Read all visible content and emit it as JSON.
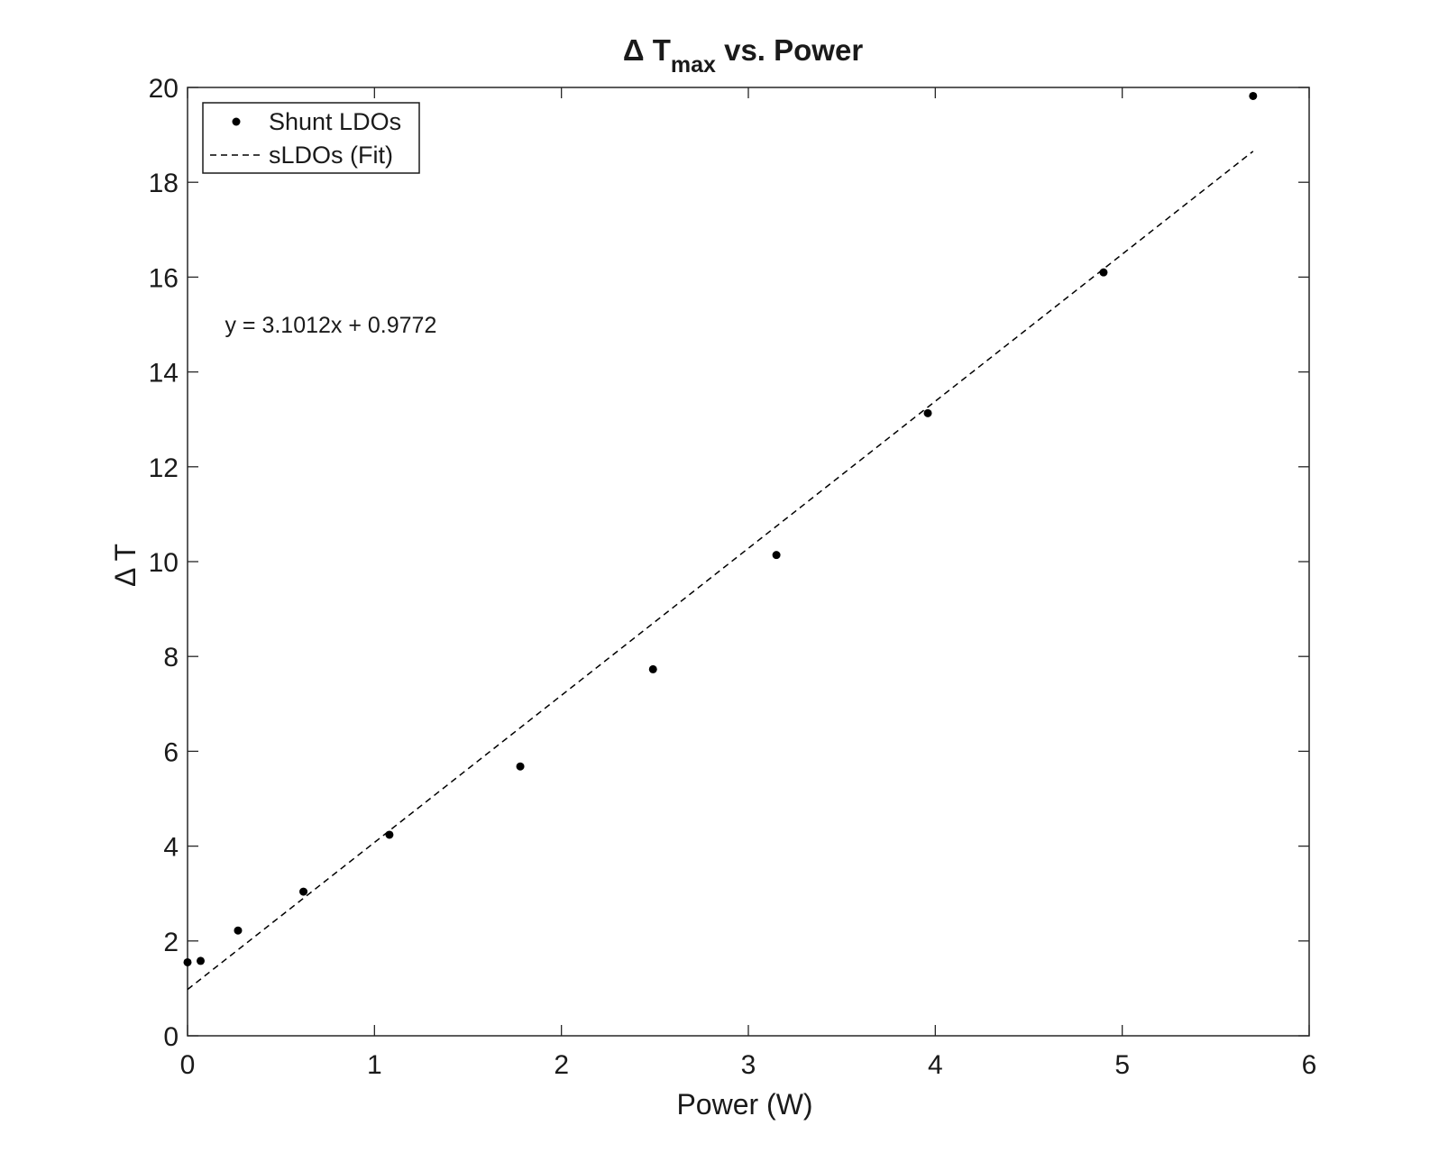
{
  "chart_data": {
    "type": "scatter",
    "title": {
      "prefix": "Δ T",
      "subscript": "max",
      "suffix": " vs. Power"
    },
    "xlabel": "Power (W)",
    "ylabel": "Δ T",
    "xlim": [
      0,
      6
    ],
    "ylim": [
      0,
      20
    ],
    "xticks": [
      0,
      1,
      2,
      3,
      4,
      5,
      6
    ],
    "yticks": [
      0,
      2,
      4,
      6,
      8,
      10,
      12,
      14,
      16,
      18,
      20
    ],
    "grid": false,
    "legend_position": "top-left",
    "series": [
      {
        "name": "Shunt LDOs",
        "kind": "scatter",
        "marker": "dot",
        "color": "#000000",
        "points": [
          [
            0.0,
            1.55
          ],
          [
            0.07,
            1.58
          ],
          [
            0.27,
            2.22
          ],
          [
            0.62,
            3.04
          ],
          [
            1.08,
            4.24
          ],
          [
            1.78,
            5.68
          ],
          [
            2.49,
            7.73
          ],
          [
            3.15,
            10.14
          ],
          [
            3.96,
            13.13
          ],
          [
            4.9,
            16.1
          ],
          [
            5.7,
            19.82
          ]
        ]
      },
      {
        "name": "sLDOs (Fit)",
        "kind": "line",
        "style": "dashed",
        "color": "#000000",
        "slope": 3.1012,
        "intercept": 0.9772,
        "x_range": [
          0,
          5.7
        ]
      }
    ],
    "annotation": {
      "text": "y = 3.1012x + 0.9772",
      "x": 0.2,
      "y": 15.0
    }
  }
}
